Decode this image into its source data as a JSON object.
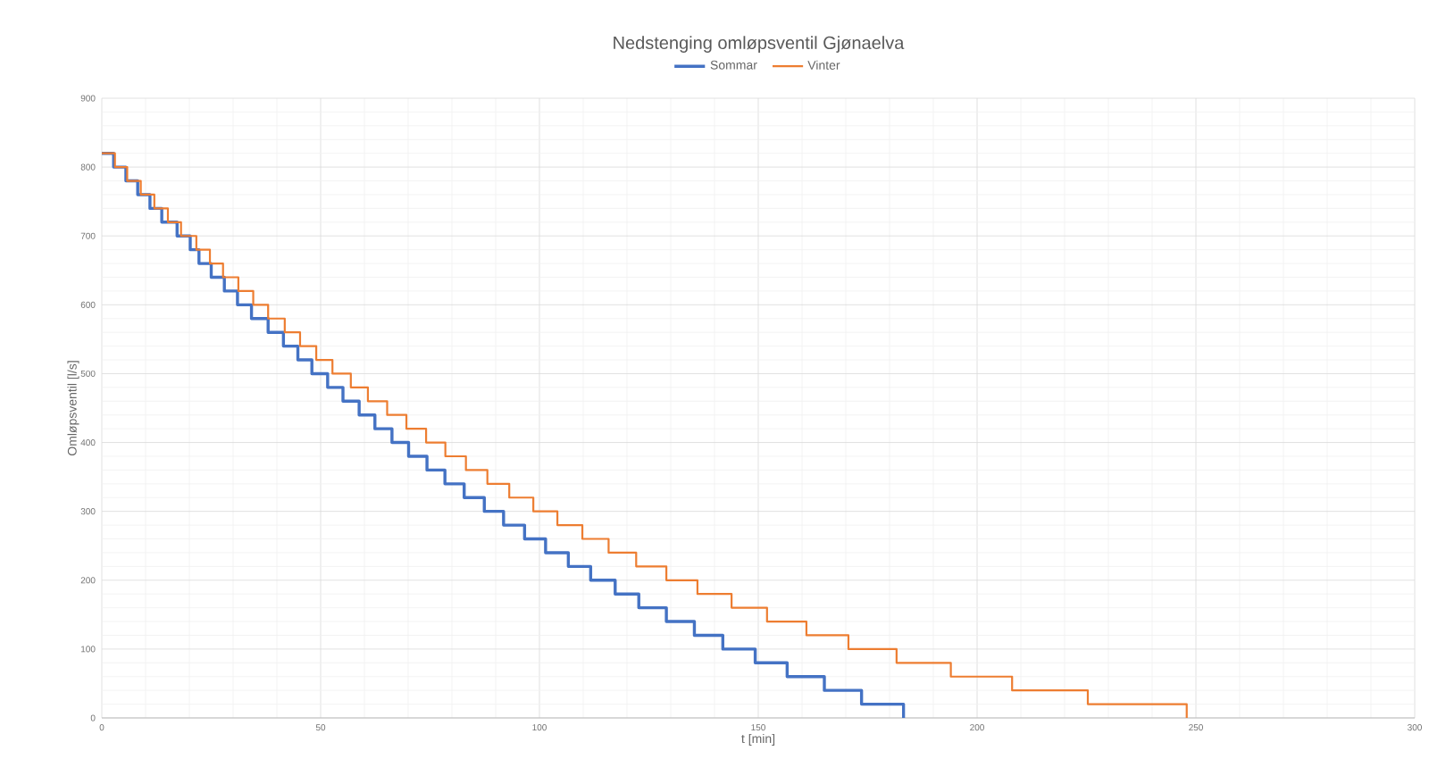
{
  "chart_data": {
    "type": "step",
    "title": "Nedstenging omløpsventil Gjønaelva",
    "xlabel": "t [min]",
    "ylabel": "Omløpsventil [l/s]",
    "xlim": [
      0,
      300
    ],
    "xticks": [
      0,
      50,
      100,
      150,
      200,
      250,
      300
    ],
    "ylim": [
      0,
      900
    ],
    "yticks": [
      0,
      100,
      200,
      300,
      400,
      500,
      600,
      700,
      800,
      900
    ],
    "grid": true,
    "legend": "top",
    "marker": "none",
    "line_style": "solid",
    "series": [
      {
        "name": "Sommar",
        "color": "#4472c4",
        "x": [
          0,
          2.7,
          5.5,
          8.2,
          11,
          13.7,
          17.2,
          20.2,
          22.2,
          25,
          28,
          31,
          34.2,
          38,
          41.5,
          44.8,
          48,
          51.6,
          55.1,
          58.8,
          62.4,
          66.3,
          70.1,
          74.3,
          78.4,
          82.8,
          87.4,
          91.8,
          96.6,
          101.4,
          106.6,
          111.7,
          117.3,
          122.7,
          129,
          135.4,
          141.9,
          149.3,
          156.6,
          165.1,
          173.6,
          183.2
        ],
        "values": [
          820,
          800,
          780,
          760,
          740,
          720,
          700,
          680,
          660,
          640,
          620,
          600,
          580,
          560,
          540,
          520,
          500,
          480,
          460,
          440,
          420,
          400,
          380,
          360,
          340,
          320,
          300,
          280,
          260,
          240,
          220,
          200,
          180,
          160,
          140,
          120,
          100,
          80,
          60,
          40,
          20,
          0
        ]
      },
      {
        "name": "Vinter",
        "color": "#ed7d31",
        "x": [
          0,
          3.0,
          5.8,
          8.9,
          12,
          15.1,
          18.1,
          21.6,
          24.7,
          27.7,
          31.2,
          34.6,
          38,
          41.8,
          45.3,
          49,
          52.7,
          56.9,
          60.8,
          65.2,
          69.6,
          74.1,
          78.5,
          83.2,
          88.1,
          93.1,
          98.6,
          104.1,
          109.8,
          115.8,
          122.1,
          129,
          136.1,
          143.9,
          152,
          161,
          170.6,
          181.6,
          194,
          208,
          225.3,
          247.9
        ],
        "values": [
          820,
          800,
          780,
          760,
          740,
          720,
          700,
          680,
          660,
          640,
          620,
          600,
          580,
          560,
          540,
          520,
          500,
          480,
          460,
          440,
          420,
          400,
          380,
          360,
          340,
          320,
          300,
          280,
          260,
          240,
          220,
          200,
          180,
          160,
          140,
          120,
          100,
          80,
          60,
          40,
          20,
          0
        ]
      }
    ]
  }
}
